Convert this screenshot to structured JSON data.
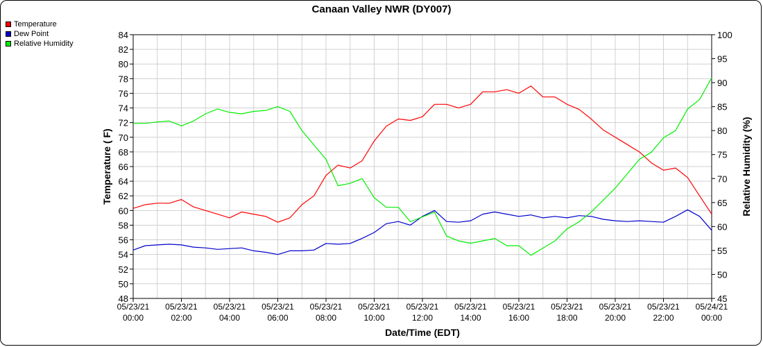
{
  "chart_data": {
    "type": "line",
    "title": "Canaan Valley NWR (DY007)",
    "xlabel": "Date/Time (EDT)",
    "ylabel": "Temperature ( F)",
    "y2label": "Relative Humidity (%)",
    "xlim": [
      0,
      24
    ],
    "ylim": [
      48,
      84
    ],
    "y2lim": [
      45,
      100
    ],
    "grid": true,
    "legend_position": "top-left outside",
    "x_ticks": [
      {
        "hour": 0,
        "date": "05/23/21",
        "time": "00:00"
      },
      {
        "hour": 2,
        "date": "05/23/21",
        "time": "02:00"
      },
      {
        "hour": 4,
        "date": "05/23/21",
        "time": "04:00"
      },
      {
        "hour": 6,
        "date": "05/23/21",
        "time": "06:00"
      },
      {
        "hour": 8,
        "date": "05/23/21",
        "time": "08:00"
      },
      {
        "hour": 10,
        "date": "05/23/21",
        "time": "10:00"
      },
      {
        "hour": 12,
        "date": "05/23/21",
        "time": "12:00"
      },
      {
        "hour": 14,
        "date": "05/23/21",
        "time": "14:00"
      },
      {
        "hour": 16,
        "date": "05/23/21",
        "time": "16:00"
      },
      {
        "hour": 18,
        "date": "05/23/21",
        "time": "18:00"
      },
      {
        "hour": 20,
        "date": "05/23/21",
        "time": "20:00"
      },
      {
        "hour": 22,
        "date": "05/23/21",
        "time": "22:00"
      },
      {
        "hour": 24,
        "date": "05/24/21",
        "time": "00:00"
      }
    ],
    "y_ticks": [
      48,
      50,
      52,
      54,
      56,
      58,
      60,
      62,
      64,
      66,
      68,
      70,
      72,
      74,
      76,
      78,
      80,
      82,
      84
    ],
    "y2_ticks": [
      45,
      50,
      55,
      60,
      65,
      70,
      75,
      80,
      85,
      90,
      95,
      100
    ],
    "series": [
      {
        "name": "Temperature",
        "axis": "left",
        "color": "#ff0000",
        "x": [
          0,
          0.5,
          1,
          1.5,
          2,
          2.5,
          3,
          3.5,
          4,
          4.5,
          5,
          5.5,
          6,
          6.5,
          7,
          7.5,
          8,
          8.5,
          9,
          9.5,
          10,
          10.5,
          11,
          11.5,
          12,
          12.5,
          13,
          13.5,
          14,
          14.5,
          15,
          15.5,
          16,
          16.5,
          17,
          17.5,
          18,
          18.5,
          19,
          19.5,
          20,
          20.5,
          21,
          21.5,
          22,
          22.5,
          23,
          23.5,
          24
        ],
        "y": [
          60.3,
          60.8,
          61.0,
          61.0,
          61.5,
          60.5,
          60.0,
          59.5,
          59.0,
          59.8,
          59.5,
          59.2,
          58.4,
          59.0,
          60.8,
          62.0,
          64.8,
          66.2,
          65.8,
          66.8,
          69.5,
          71.5,
          72.5,
          72.3,
          72.8,
          74.5,
          74.5,
          74.0,
          74.5,
          76.2,
          76.2,
          76.5,
          76.0,
          77.0,
          75.5,
          75.5,
          74.5,
          73.8,
          72.5,
          71.0,
          70.0,
          69.0,
          68.0,
          66.5,
          65.5,
          65.8,
          64.5,
          62.0,
          59.5
        ]
      },
      {
        "name": "Dew Point",
        "axis": "left",
        "color": "#0000cc",
        "x": [
          0,
          0.5,
          1,
          1.5,
          2,
          2.5,
          3,
          3.5,
          4,
          4.5,
          5,
          5.5,
          6,
          6.5,
          7,
          7.5,
          8,
          8.5,
          9,
          9.5,
          10,
          10.5,
          11,
          11.5,
          12,
          12.5,
          13,
          13.5,
          14,
          14.5,
          15,
          15.5,
          16,
          16.5,
          17,
          17.5,
          18,
          18.5,
          19,
          19.5,
          20,
          20.5,
          21,
          21.5,
          22,
          22.5,
          23,
          23.5,
          24
        ],
        "y": [
          54.6,
          55.2,
          55.3,
          55.4,
          55.3,
          55.0,
          54.9,
          54.7,
          54.8,
          54.9,
          54.5,
          54.3,
          54.0,
          54.5,
          54.5,
          54.6,
          55.5,
          55.4,
          55.5,
          56.2,
          57.0,
          58.2,
          58.5,
          58.0,
          59.2,
          60.0,
          58.5,
          58.4,
          58.6,
          59.5,
          59.8,
          59.5,
          59.2,
          59.4,
          59.0,
          59.2,
          59.0,
          59.3,
          59.2,
          58.8,
          58.6,
          58.5,
          58.6,
          58.5,
          58.4,
          59.2,
          60.1,
          59.2,
          57.3
        ]
      },
      {
        "name": "Relative Humidity",
        "axis": "right",
        "color": "#00ee00",
        "x": [
          0,
          0.5,
          1,
          1.5,
          2,
          2.5,
          3,
          3.5,
          4,
          4.5,
          5,
          5.5,
          6,
          6.5,
          7,
          7.5,
          8,
          8.5,
          9,
          9.5,
          10,
          10.5,
          11,
          11.5,
          12,
          12.5,
          13,
          13.5,
          14,
          14.5,
          15,
          15.5,
          16,
          16.5,
          17,
          17.5,
          18,
          18.5,
          19,
          19.5,
          20,
          20.5,
          21,
          21.5,
          22,
          22.5,
          23,
          23.5,
          24
        ],
        "y": [
          81.5,
          81.5,
          81.8,
          82.0,
          81.0,
          82.0,
          83.5,
          84.5,
          83.8,
          83.5,
          84.0,
          84.2,
          85.0,
          84.0,
          80.0,
          77.0,
          74.0,
          68.5,
          69.0,
          70.0,
          66.0,
          64.0,
          64.0,
          61.0,
          62.0,
          63.0,
          58.0,
          57.0,
          56.5,
          57.0,
          57.5,
          56.0,
          56.0,
          54.0,
          55.5,
          57.0,
          59.5,
          61.0,
          63.0,
          65.5,
          68.0,
          71.0,
          74.0,
          75.5,
          78.5,
          80.0,
          84.5,
          86.5,
          91.0
        ]
      }
    ]
  }
}
